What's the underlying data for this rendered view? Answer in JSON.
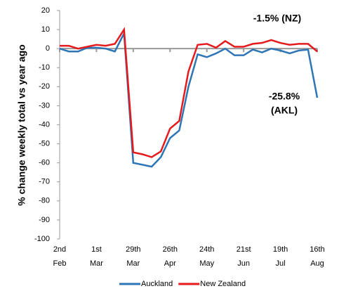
{
  "chart_data": {
    "type": "line",
    "y_label": "% change weekly total  vs year ago",
    "categories": [
      "2nd Feb",
      null,
      null,
      null,
      "1st Mar",
      null,
      null,
      null,
      "29th Mar",
      null,
      null,
      null,
      "26th Apr",
      null,
      null,
      null,
      "24th May",
      null,
      null,
      null,
      "21st Jun",
      null,
      null,
      null,
      "19th Jul",
      null,
      null,
      null,
      "16th Aug"
    ],
    "series": [
      {
        "name": "Auckland",
        "color": "#2e75b6",
        "values": [
          0,
          -1.5,
          -1.5,
          0.5,
          0.5,
          0,
          -1.5,
          8,
          -60,
          -61,
          -62,
          -57,
          -47,
          -43,
          -20,
          -3,
          -4.5,
          -2.5,
          0,
          -3.5,
          -3.5,
          -0.5,
          -2,
          0,
          -1,
          -2.5,
          -1,
          -0.5,
          -25.8
        ]
      },
      {
        "name": "New Zealand",
        "color": "#e41a1c",
        "values": [
          1.5,
          1.5,
          0,
          1,
          2,
          1.5,
          2.5,
          10,
          -54.5,
          -55.5,
          -57,
          -54,
          -42,
          -38,
          -12,
          2,
          2.5,
          0.5,
          4,
          1,
          1,
          2.5,
          3,
          4.5,
          3,
          2,
          2.5,
          2.5,
          -1.5
        ]
      }
    ],
    "annotations": [
      {
        "lines": [
          "-1.5% (NZ)"
        ],
        "color": "#c00000"
      },
      {
        "lines": [
          "-25.8%",
          "(AKL)"
        ],
        "color": "#2e75b6"
      }
    ],
    "ylim": [
      -100,
      20
    ],
    "yticks": [
      -100,
      -90,
      -80,
      -70,
      -60,
      -50,
      -40,
      -30,
      -20,
      -10,
      0,
      10,
      20
    ],
    "grid": false,
    "legend": "bottom"
  }
}
